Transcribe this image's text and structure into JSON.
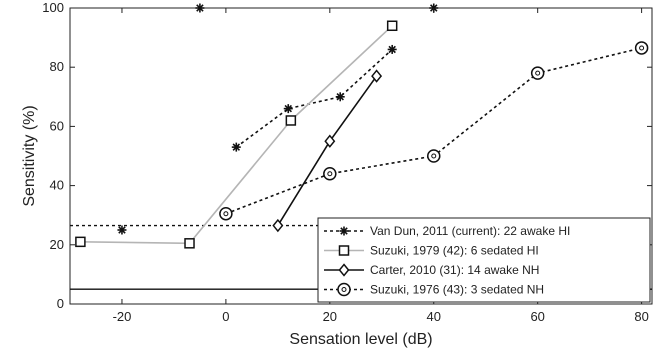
{
  "chart_data": {
    "type": "line",
    "xlabel": "Sensation level (dB)",
    "ylabel": "Sensitivity (%)",
    "xlim": [
      -30,
      82
    ],
    "ylim": [
      0,
      100
    ],
    "xticks": [
      -20,
      0,
      20,
      40,
      60,
      80
    ],
    "yticks": [
      0,
      20,
      40,
      60,
      80,
      100
    ],
    "legend_position": "bottom-right",
    "grid": false,
    "reference_lines": [
      {
        "y": 26.5,
        "style": "dotted",
        "color": "#111111"
      },
      {
        "y": 5,
        "style": "solid",
        "color": "#111111"
      }
    ],
    "series": [
      {
        "name": "Van Dun, 2011 (current): 22 awake HI",
        "marker": "asterisk",
        "line_style": "dotted",
        "color": "#111111",
        "connected_points": [
          [
            2,
            53
          ],
          [
            12,
            66
          ],
          [
            22,
            70
          ],
          [
            32,
            86
          ]
        ],
        "isolated_points": [
          [
            -20,
            25
          ],
          [
            -5,
            100
          ],
          [
            40,
            100
          ]
        ]
      },
      {
        "name": "Suzuki, 1979 (42): 6 sedated HI",
        "marker": "square",
        "line_style": "solid",
        "color": "#b5b5b5",
        "marker_color": "#111111",
        "points": [
          [
            -28,
            21
          ],
          [
            -7,
            20.5
          ],
          [
            12.5,
            62
          ],
          [
            32,
            94
          ]
        ]
      },
      {
        "name": "Carter, 2010 (31): 14 awake NH",
        "marker": "diamond",
        "line_style": "solid",
        "color": "#111111",
        "points": [
          [
            10,
            26.5
          ],
          [
            20,
            55
          ],
          [
            29,
            77
          ]
        ]
      },
      {
        "name": "Suzuki, 1976 (43): 3 sedated NH",
        "marker": "circle",
        "line_style": "dotted",
        "color": "#111111",
        "points": [
          [
            0,
            30.5
          ],
          [
            20,
            44
          ],
          [
            40,
            50
          ],
          [
            60,
            78
          ],
          [
            80,
            86.5
          ]
        ]
      }
    ]
  }
}
